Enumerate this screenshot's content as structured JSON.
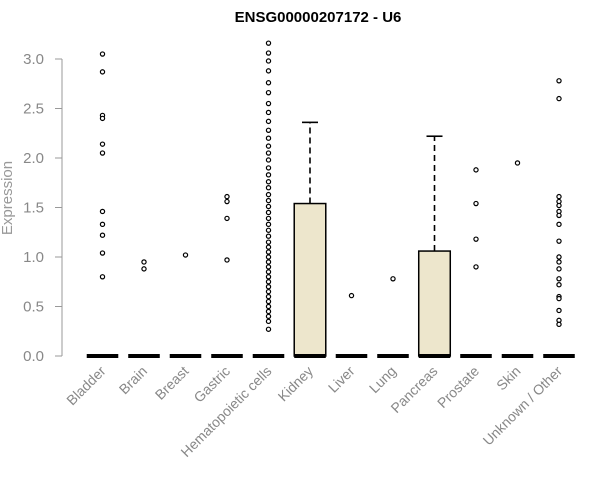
{
  "chart_data": {
    "type": "boxplot",
    "title": "ENSG00000207172 - U6",
    "xlabel": "",
    "ylabel": "Expression",
    "ylim": [
      0,
      3.2
    ],
    "yticks": [
      "0.0",
      "0.5",
      "1.0",
      "1.5",
      "2.0",
      "2.5",
      "3.0"
    ],
    "grid": false,
    "legend": "none",
    "box_fill": "#EDE6CC",
    "categories": [
      "Bladder",
      "Brain",
      "Breast",
      "Gastric",
      "Hematopoietic cells",
      "Kidney",
      "Liver",
      "Lung",
      "Pancreas",
      "Prostate",
      "Skin",
      "Unknown / Other"
    ],
    "boxes": [
      {
        "category": "Bladder",
        "q1": 0,
        "median": 0,
        "q3": 0,
        "whisker_low": 0,
        "whisker_high": 0,
        "outliers": [
          3.05,
          2.87,
          2.43,
          2.4,
          2.14,
          2.05,
          1.46,
          1.33,
          1.22,
          1.04,
          0.8
        ]
      },
      {
        "category": "Brain",
        "q1": 0,
        "median": 0,
        "q3": 0,
        "whisker_low": 0,
        "whisker_high": 0,
        "outliers": [
          0.95,
          0.88
        ]
      },
      {
        "category": "Breast",
        "q1": 0,
        "median": 0,
        "q3": 0,
        "whisker_low": 0,
        "whisker_high": 0,
        "outliers": [
          1.02
        ]
      },
      {
        "category": "Gastric",
        "q1": 0,
        "median": 0,
        "q3": 0,
        "whisker_low": 0,
        "whisker_high": 0,
        "outliers": [
          1.61,
          1.56,
          1.39,
          0.97
        ]
      },
      {
        "category": "Hematopoietic cells",
        "q1": 0,
        "median": 0,
        "q3": 0,
        "whisker_low": 0,
        "whisker_high": 0,
        "outliers": [
          3.16,
          3.06,
          2.98,
          2.88,
          2.76,
          2.66,
          2.55,
          2.46,
          2.37,
          2.28,
          2.2,
          2.12,
          2.05,
          1.98,
          1.9,
          1.83,
          1.76,
          1.7,
          1.63,
          1.57,
          1.51,
          1.45,
          1.39,
          1.33,
          1.27,
          1.21,
          1.15,
          1.1,
          1.05,
          1.0,
          0.95,
          0.9,
          0.85,
          0.8,
          0.75,
          0.7,
          0.65,
          0.6,
          0.55,
          0.5,
          0.45,
          0.4,
          0.35,
          0.27
        ]
      },
      {
        "category": "Kidney",
        "q1": 0,
        "median": 0,
        "q3": 1.54,
        "whisker_low": 0,
        "whisker_high": 2.36,
        "outliers": []
      },
      {
        "category": "Liver",
        "q1": 0,
        "median": 0,
        "q3": 0,
        "whisker_low": 0,
        "whisker_high": 0,
        "outliers": [
          0.61
        ]
      },
      {
        "category": "Lung",
        "q1": 0,
        "median": 0,
        "q3": 0,
        "whisker_low": 0,
        "whisker_high": 0,
        "outliers": [
          0.78
        ]
      },
      {
        "category": "Pancreas",
        "q1": 0,
        "median": 0,
        "q3": 1.06,
        "whisker_low": 0,
        "whisker_high": 2.22,
        "outliers": []
      },
      {
        "category": "Prostate",
        "q1": 0,
        "median": 0,
        "q3": 0,
        "whisker_low": 0,
        "whisker_high": 0,
        "outliers": [
          1.88,
          1.54,
          1.18,
          0.9
        ]
      },
      {
        "category": "Skin",
        "q1": 0,
        "median": 0,
        "q3": 0,
        "whisker_low": 0,
        "whisker_high": 0,
        "outliers": [
          1.95
        ]
      },
      {
        "category": "Unknown / Other",
        "q1": 0,
        "median": 0,
        "q3": 0,
        "whisker_low": 0,
        "whisker_high": 0,
        "outliers": [
          2.78,
          2.6,
          1.61,
          1.56,
          1.52,
          1.46,
          1.42,
          1.33,
          1.16,
          1.0,
          0.95,
          0.88,
          0.78,
          0.72,
          0.6,
          0.58,
          0.46,
          0.36,
          0.32
        ]
      }
    ]
  }
}
